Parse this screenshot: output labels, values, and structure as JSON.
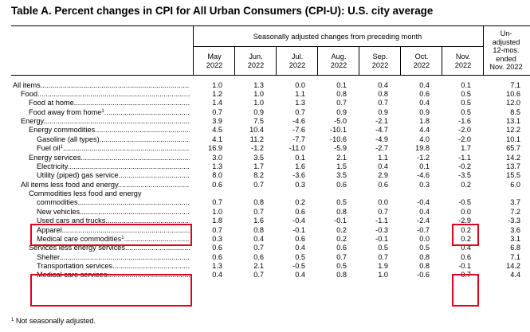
{
  "title": "Table A. Percent changes in CPI for All Urban Consumers (CPI-U): U.S. city average",
  "header": {
    "seasonal_span": "Seasonally adjusted changes from preceding month",
    "months": [
      {
        "line1": "May",
        "line2": "2022"
      },
      {
        "line1": "Jun.",
        "line2": "2022"
      },
      {
        "line1": "Jul.",
        "line2": "2022"
      },
      {
        "line1": "Aug.",
        "line2": "2022"
      },
      {
        "line1": "Sep.",
        "line2": "2022"
      },
      {
        "line1": "Oct.",
        "line2": "2022"
      },
      {
        "line1": "Nov.",
        "line2": "2022"
      }
    ],
    "unadjusted": [
      "Un-",
      "adjusted",
      "12-mos.",
      "ended",
      "Nov. 2022"
    ]
  },
  "rows": [
    {
      "label": "All items",
      "sup": "",
      "values": [
        "1.0",
        "1.3",
        "0.0",
        "0.1",
        "0.4",
        "0.4",
        "0.1",
        "7.1"
      ]
    },
    {
      "label": "Food",
      "sup": "",
      "values": [
        "1.2",
        "1.0",
        "1.1",
        "0.8",
        "0.8",
        "0.6",
        "0.5",
        "10.6"
      ]
    },
    {
      "label": "Food at home",
      "sup": "",
      "values": [
        "1.4",
        "1.0",
        "1.3",
        "0.7",
        "0.7",
        "0.4",
        "0.5",
        "12.0"
      ]
    },
    {
      "label": "Food away from home",
      "sup": "1",
      "values": [
        "0.7",
        "0.9",
        "0.7",
        "0.9",
        "0.9",
        "0.9",
        "0.5",
        "8.5"
      ]
    },
    {
      "label": "Energy",
      "sup": "",
      "values": [
        "3.9",
        "7.5",
        "-4.6",
        "-5.0",
        "-2.1",
        "1.8",
        "-1.6",
        "13.1"
      ]
    },
    {
      "label": "Energy commodities",
      "sup": "",
      "values": [
        "4.5",
        "10.4",
        "-7.6",
        "-10.1",
        "-4.7",
        "4.4",
        "-2.0",
        "12.2"
      ]
    },
    {
      "label": "Gasoline (all types)",
      "sup": "",
      "values": [
        "4.1",
        "11.2",
        "-7.7",
        "-10.6",
        "-4.9",
        "4.0",
        "-2.0",
        "10.1"
      ]
    },
    {
      "label": "Fuel oil",
      "sup": "1",
      "values": [
        "16.9",
        "-1.2",
        "-11.0",
        "-5.9",
        "-2.7",
        "19.8",
        "1.7",
        "65.7"
      ]
    },
    {
      "label": "Energy services",
      "sup": "",
      "values": [
        "3.0",
        "3.5",
        "0.1",
        "2.1",
        "1.1",
        "-1.2",
        "-1.1",
        "14.2"
      ]
    },
    {
      "label": "Electricity",
      "sup": "",
      "values": [
        "1.3",
        "1.7",
        "1.6",
        "1.5",
        "0.4",
        "0.1",
        "-0.2",
        "13.7"
      ]
    },
    {
      "label": "Utility (piped) gas service",
      "sup": "",
      "values": [
        "8.0",
        "8.2",
        "-3.6",
        "3.5",
        "2.9",
        "-4.6",
        "-3.5",
        "15.5"
      ]
    },
    {
      "label": "All items less food and energy",
      "sup": "",
      "values": [
        "0.6",
        "0.7",
        "0.3",
        "0.6",
        "0.6",
        "0.3",
        "0.2",
        "6.0"
      ]
    },
    {
      "label": "Commodities less food and energy",
      "sup": "",
      "values": [
        "",
        "",
        "",
        "",
        "",
        "",
        "",
        ""
      ]
    },
    {
      "label": "commodities",
      "sup": "",
      "values": [
        "0.7",
        "0.8",
        "0.2",
        "0.5",
        "0.0",
        "-0.4",
        "-0.5",
        "3.7"
      ]
    },
    {
      "label": "New vehicles",
      "sup": "",
      "values": [
        "1.0",
        "0.7",
        "0.6",
        "0.8",
        "0.7",
        "0.4",
        "0.0",
        "7.2"
      ]
    },
    {
      "label": "Used cars and trucks",
      "sup": "",
      "values": [
        "1.8",
        "1.6",
        "-0.4",
        "-0.1",
        "-1.1",
        "-2.4",
        "-2.9",
        "-3.3"
      ]
    },
    {
      "label": "Apparel",
      "sup": "",
      "values": [
        "0.7",
        "0.8",
        "-0.1",
        "0.2",
        "-0.3",
        "-0.7",
        "0.2",
        "3.6"
      ]
    },
    {
      "label": "Medical care commodities",
      "sup": "1",
      "values": [
        "0.3",
        "0.4",
        "0.6",
        "0.2",
        "-0.1",
        "0.0",
        "0.2",
        "3.1"
      ]
    },
    {
      "label": "Services less energy services",
      "sup": "",
      "values": [
        "0.6",
        "0.7",
        "0.4",
        "0.6",
        "0.5",
        "0.5",
        "0.4",
        "6.8"
      ]
    },
    {
      "label": "Shelter",
      "sup": "",
      "values": [
        "0.6",
        "0.6",
        "0.5",
        "0.7",
        "0.7",
        "0.8",
        "0.6",
        "7.1"
      ]
    },
    {
      "label": "Transportation services",
      "sup": "",
      "values": [
        "1.3",
        "2.1",
        "-0.5",
        "0.5",
        "1.9",
        "0.8",
        "-0.1",
        "14.2"
      ]
    },
    {
      "label": "Medical care services",
      "sup": "",
      "values": [
        "0.4",
        "0.7",
        "0.4",
        "0.8",
        "1.0",
        "-0.6",
        "-0.7",
        "4.4"
      ]
    }
  ],
  "footnote": {
    "sup": "1",
    "text": "Not seasonally adjusted."
  },
  "highlight_color": "#e0001b"
}
